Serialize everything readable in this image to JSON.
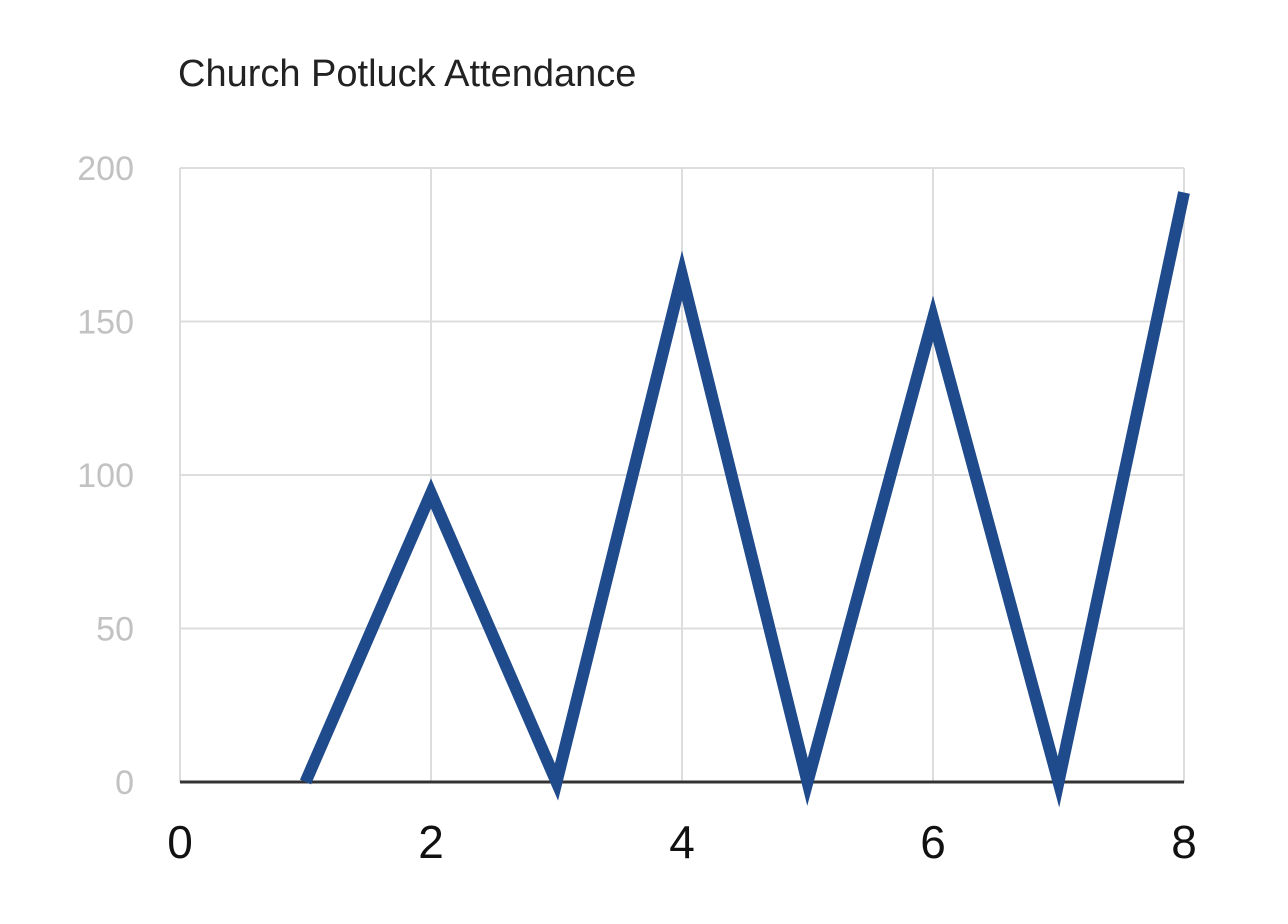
{
  "chart_data": {
    "type": "line",
    "title": "Church Potluck Attendance",
    "xlabel": "",
    "ylabel": "",
    "xlim": [
      0,
      8
    ],
    "ylim": [
      0,
      200
    ],
    "x_ticks": [
      "0",
      "2",
      "4",
      "6",
      "8"
    ],
    "y_ticks": [
      "0",
      "50",
      "100",
      "150",
      "200"
    ],
    "grid": true,
    "legend": "none",
    "series": [
      {
        "x": [
          1,
          2,
          3,
          4,
          5,
          6,
          7,
          8
        ],
        "y": [
          0,
          94,
          0,
          165,
          0,
          151,
          0,
          192
        ]
      }
    ],
    "colors": {
      "line": "#1f4a8c",
      "grid": "#dddddd",
      "axis": "#333333",
      "y_tick_text": "#c2c2c2",
      "x_tick_text": "#111111",
      "title_text": "#222222"
    }
  }
}
